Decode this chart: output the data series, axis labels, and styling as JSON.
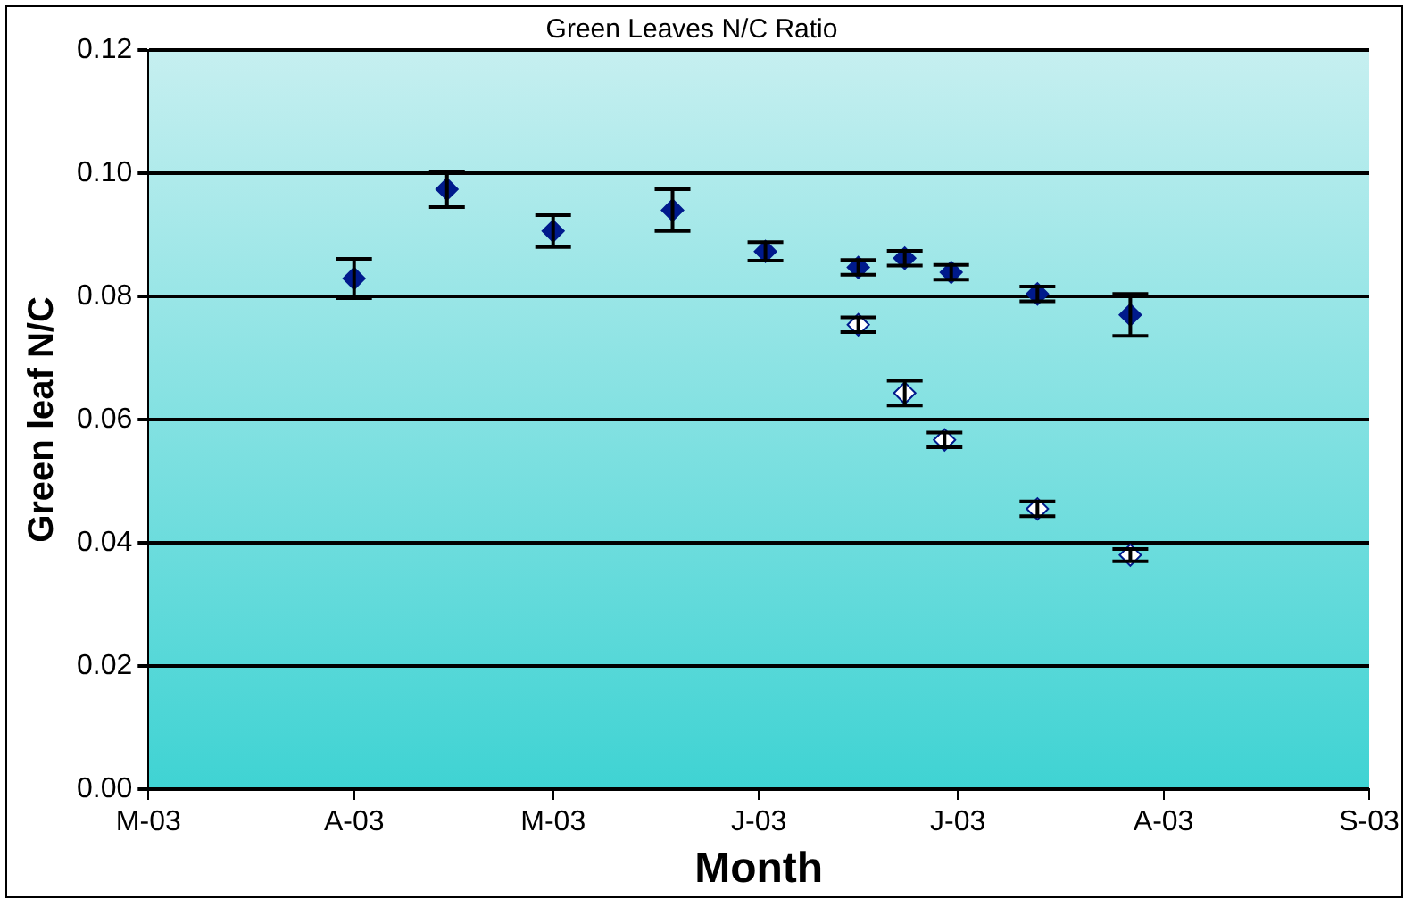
{
  "chart_data": {
    "type": "scatter",
    "title": "Green Leaves N/C Ratio",
    "xlabel": "Month",
    "ylabel": "Green leaf N/C",
    "xlim": [
      "2003-03-01",
      "2003-09-01"
    ],
    "xticks": [
      {
        "value": "2003-03-01",
        "label": "M-03"
      },
      {
        "value": "2003-04-01",
        "label": "A-03"
      },
      {
        "value": "2003-05-01",
        "label": "M-03"
      },
      {
        "value": "2003-06-01",
        "label": "J-03"
      },
      {
        "value": "2003-07-01",
        "label": "J-03"
      },
      {
        "value": "2003-08-01",
        "label": "A-03"
      },
      {
        "value": "2003-09-01",
        "label": "S-03"
      }
    ],
    "ylim": [
      0,
      0.12
    ],
    "yticks": [
      {
        "value": 0,
        "label": "0.00"
      },
      {
        "value": 0.02,
        "label": "0.02"
      },
      {
        "value": 0.04,
        "label": "0.04"
      },
      {
        "value": 0.06,
        "label": "0.06"
      },
      {
        "value": 0.08,
        "label": "0.08"
      },
      {
        "value": 0.1,
        "label": "0.10"
      },
      {
        "value": 0.12,
        "label": "0.12"
      }
    ],
    "grid": "y",
    "legend": false,
    "marker": "diamond",
    "series": [
      {
        "color": "#001a8c",
        "x": [
          "2003-04-01",
          "2003-04-15",
          "2003-05-01",
          "2003-05-19",
          "2003-06-02",
          "2003-06-16",
          "2003-06-23",
          "2003-06-30",
          "2003-07-13",
          "2003-07-27"
        ],
        "values": [
          0.0829,
          0.0974,
          0.0906,
          0.094,
          0.0873,
          0.0847,
          0.0862,
          0.0839,
          0.0804,
          0.077
        ],
        "errors": [
          0.0032,
          0.0029,
          0.0026,
          0.0034,
          0.0015,
          0.0012,
          0.0012,
          0.0012,
          0.0012,
          0.0034
        ]
      },
      {
        "color": "#ffffff",
        "x": [
          "2003-06-16",
          "2003-06-23",
          "2003-06-29",
          "2003-07-13",
          "2003-07-27"
        ],
        "values": [
          0.0754,
          0.0643,
          0.0567,
          0.0455,
          0.038
        ],
        "errors": [
          0.0012,
          0.002,
          0.0012,
          0.0012,
          0.001
        ]
      }
    ]
  }
}
